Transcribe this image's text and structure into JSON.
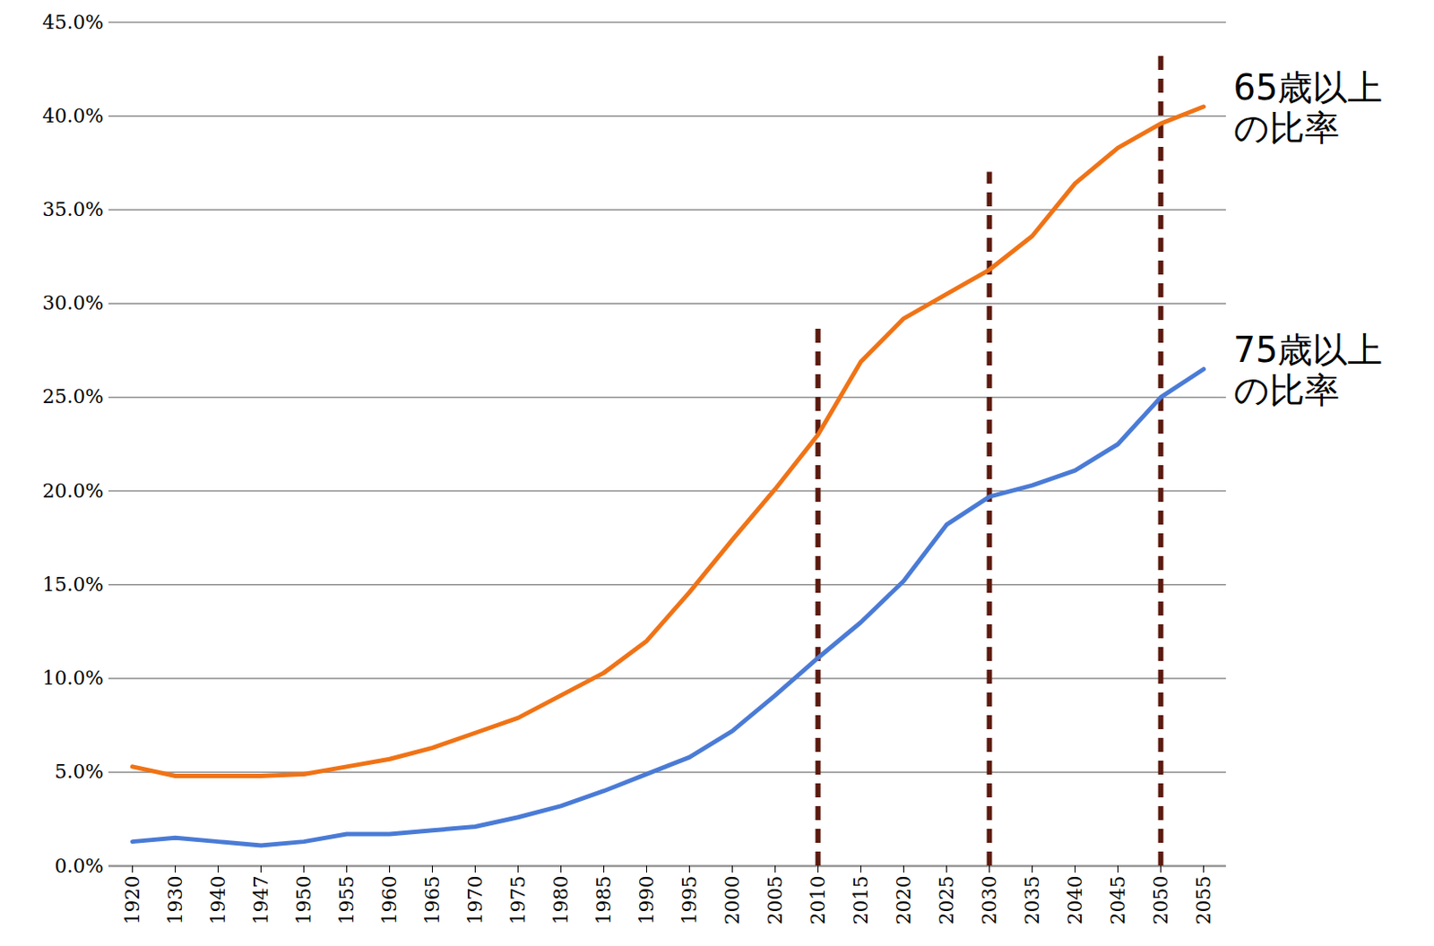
{
  "chart_data": {
    "type": "line",
    "categories": [
      1920,
      1930,
      1940,
      1947,
      1950,
      1955,
      1960,
      1965,
      1970,
      1975,
      1980,
      1985,
      1990,
      1995,
      2000,
      2005,
      2010,
      2015,
      2020,
      2025,
      2030,
      2035,
      2040,
      2045,
      2050,
      2055
    ],
    "series": [
      {
        "name": "65歳以上の比率",
        "color": "#f07316",
        "values": [
          5.3,
          4.8,
          4.8,
          4.8,
          4.9,
          5.3,
          5.7,
          6.3,
          7.1,
          7.9,
          9.1,
          10.3,
          12.0,
          14.6,
          17.4,
          20.1,
          23.0,
          26.9,
          29.2,
          30.5,
          31.8,
          33.6,
          36.4,
          38.3,
          39.6,
          40.5
        ]
      },
      {
        "name": "75歳以上の比率",
        "color": "#4a7bd6",
        "values": [
          1.3,
          1.5,
          1.3,
          1.1,
          1.3,
          1.7,
          1.7,
          1.9,
          2.1,
          2.6,
          3.2,
          4.0,
          4.9,
          5.8,
          7.2,
          9.1,
          11.1,
          13.0,
          15.2,
          18.2,
          19.7,
          20.3,
          21.1,
          22.5,
          25.0,
          26.5
        ]
      }
    ],
    "ylim": [
      0,
      45
    ],
    "yticks": [
      {
        "value": 0,
        "label": "0.0%"
      },
      {
        "value": 5,
        "label": "5.0%"
      },
      {
        "value": 10,
        "label": "10.0%"
      },
      {
        "value": 15,
        "label": "15.0%"
      },
      {
        "value": 20,
        "label": "20.0%"
      },
      {
        "value": 25,
        "label": "25.0%"
      },
      {
        "value": 30,
        "label": "30.0%"
      },
      {
        "value": 35,
        "label": "35.0%"
      },
      {
        "value": 40,
        "label": "40.0%"
      },
      {
        "value": 45,
        "label": "45.0%"
      }
    ],
    "grid": true,
    "vlines": [
      {
        "x": 2010,
        "y": 29
      },
      {
        "x": 2030,
        "y": 37
      },
      {
        "x": 2050,
        "y": 43.5
      }
    ]
  }
}
